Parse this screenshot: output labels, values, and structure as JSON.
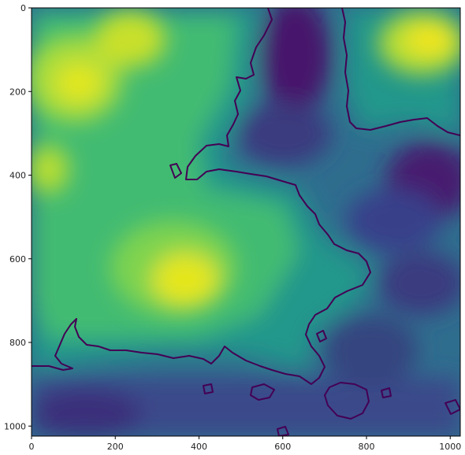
{
  "chart_data": {
    "type": "heatmap",
    "colormap": "viridis",
    "colormap_stops": [
      "#440154",
      "#3b528b",
      "#21918c",
      "#5ec962",
      "#fde725"
    ],
    "xlim": [
      0,
      1024
    ],
    "ylim": [
      1024,
      0
    ],
    "x_ticks": [
      {
        "value": 0,
        "label": "0"
      },
      {
        "value": 200,
        "label": "200"
      },
      {
        "value": 400,
        "label": "400"
      },
      {
        "value": 600,
        "label": "600"
      },
      {
        "value": 800,
        "label": "800"
      },
      {
        "value": 1000,
        "label": "1000"
      }
    ],
    "y_ticks": [
      {
        "value": 0,
        "label": "0"
      },
      {
        "value": 200,
        "label": "200"
      },
      {
        "value": 400,
        "label": "400"
      },
      {
        "value": 600,
        "label": "600"
      },
      {
        "value": 800,
        "label": "800"
      },
      {
        "value": 1000,
        "label": "1000"
      }
    ],
    "grid": false,
    "legend": "none",
    "regions": [
      {
        "name": "peak-top-left",
        "x": 110,
        "y": 170,
        "level": 0.92
      },
      {
        "name": "peak-center-left",
        "x": 370,
        "y": 650,
        "level": 0.96
      },
      {
        "name": "peak-top-right",
        "x": 930,
        "y": 90,
        "level": 0.9
      },
      {
        "name": "plateau-left",
        "x": 60,
        "y": 420,
        "level": 0.72
      },
      {
        "name": "plateau-middle",
        "x": 270,
        "y": 300,
        "level": 0.68
      },
      {
        "name": "low-top-center",
        "x": 640,
        "y": 100,
        "level": 0.05
      },
      {
        "name": "low-right",
        "x": 960,
        "y": 430,
        "level": 0.04
      },
      {
        "name": "low-bottom-left",
        "x": 150,
        "y": 960,
        "level": 0.18
      },
      {
        "name": "low-bottom-right",
        "x": 800,
        "y": 800,
        "level": 0.22
      },
      {
        "name": "low-right-lower",
        "x": 940,
        "y": 700,
        "level": 0.2
      }
    ]
  }
}
